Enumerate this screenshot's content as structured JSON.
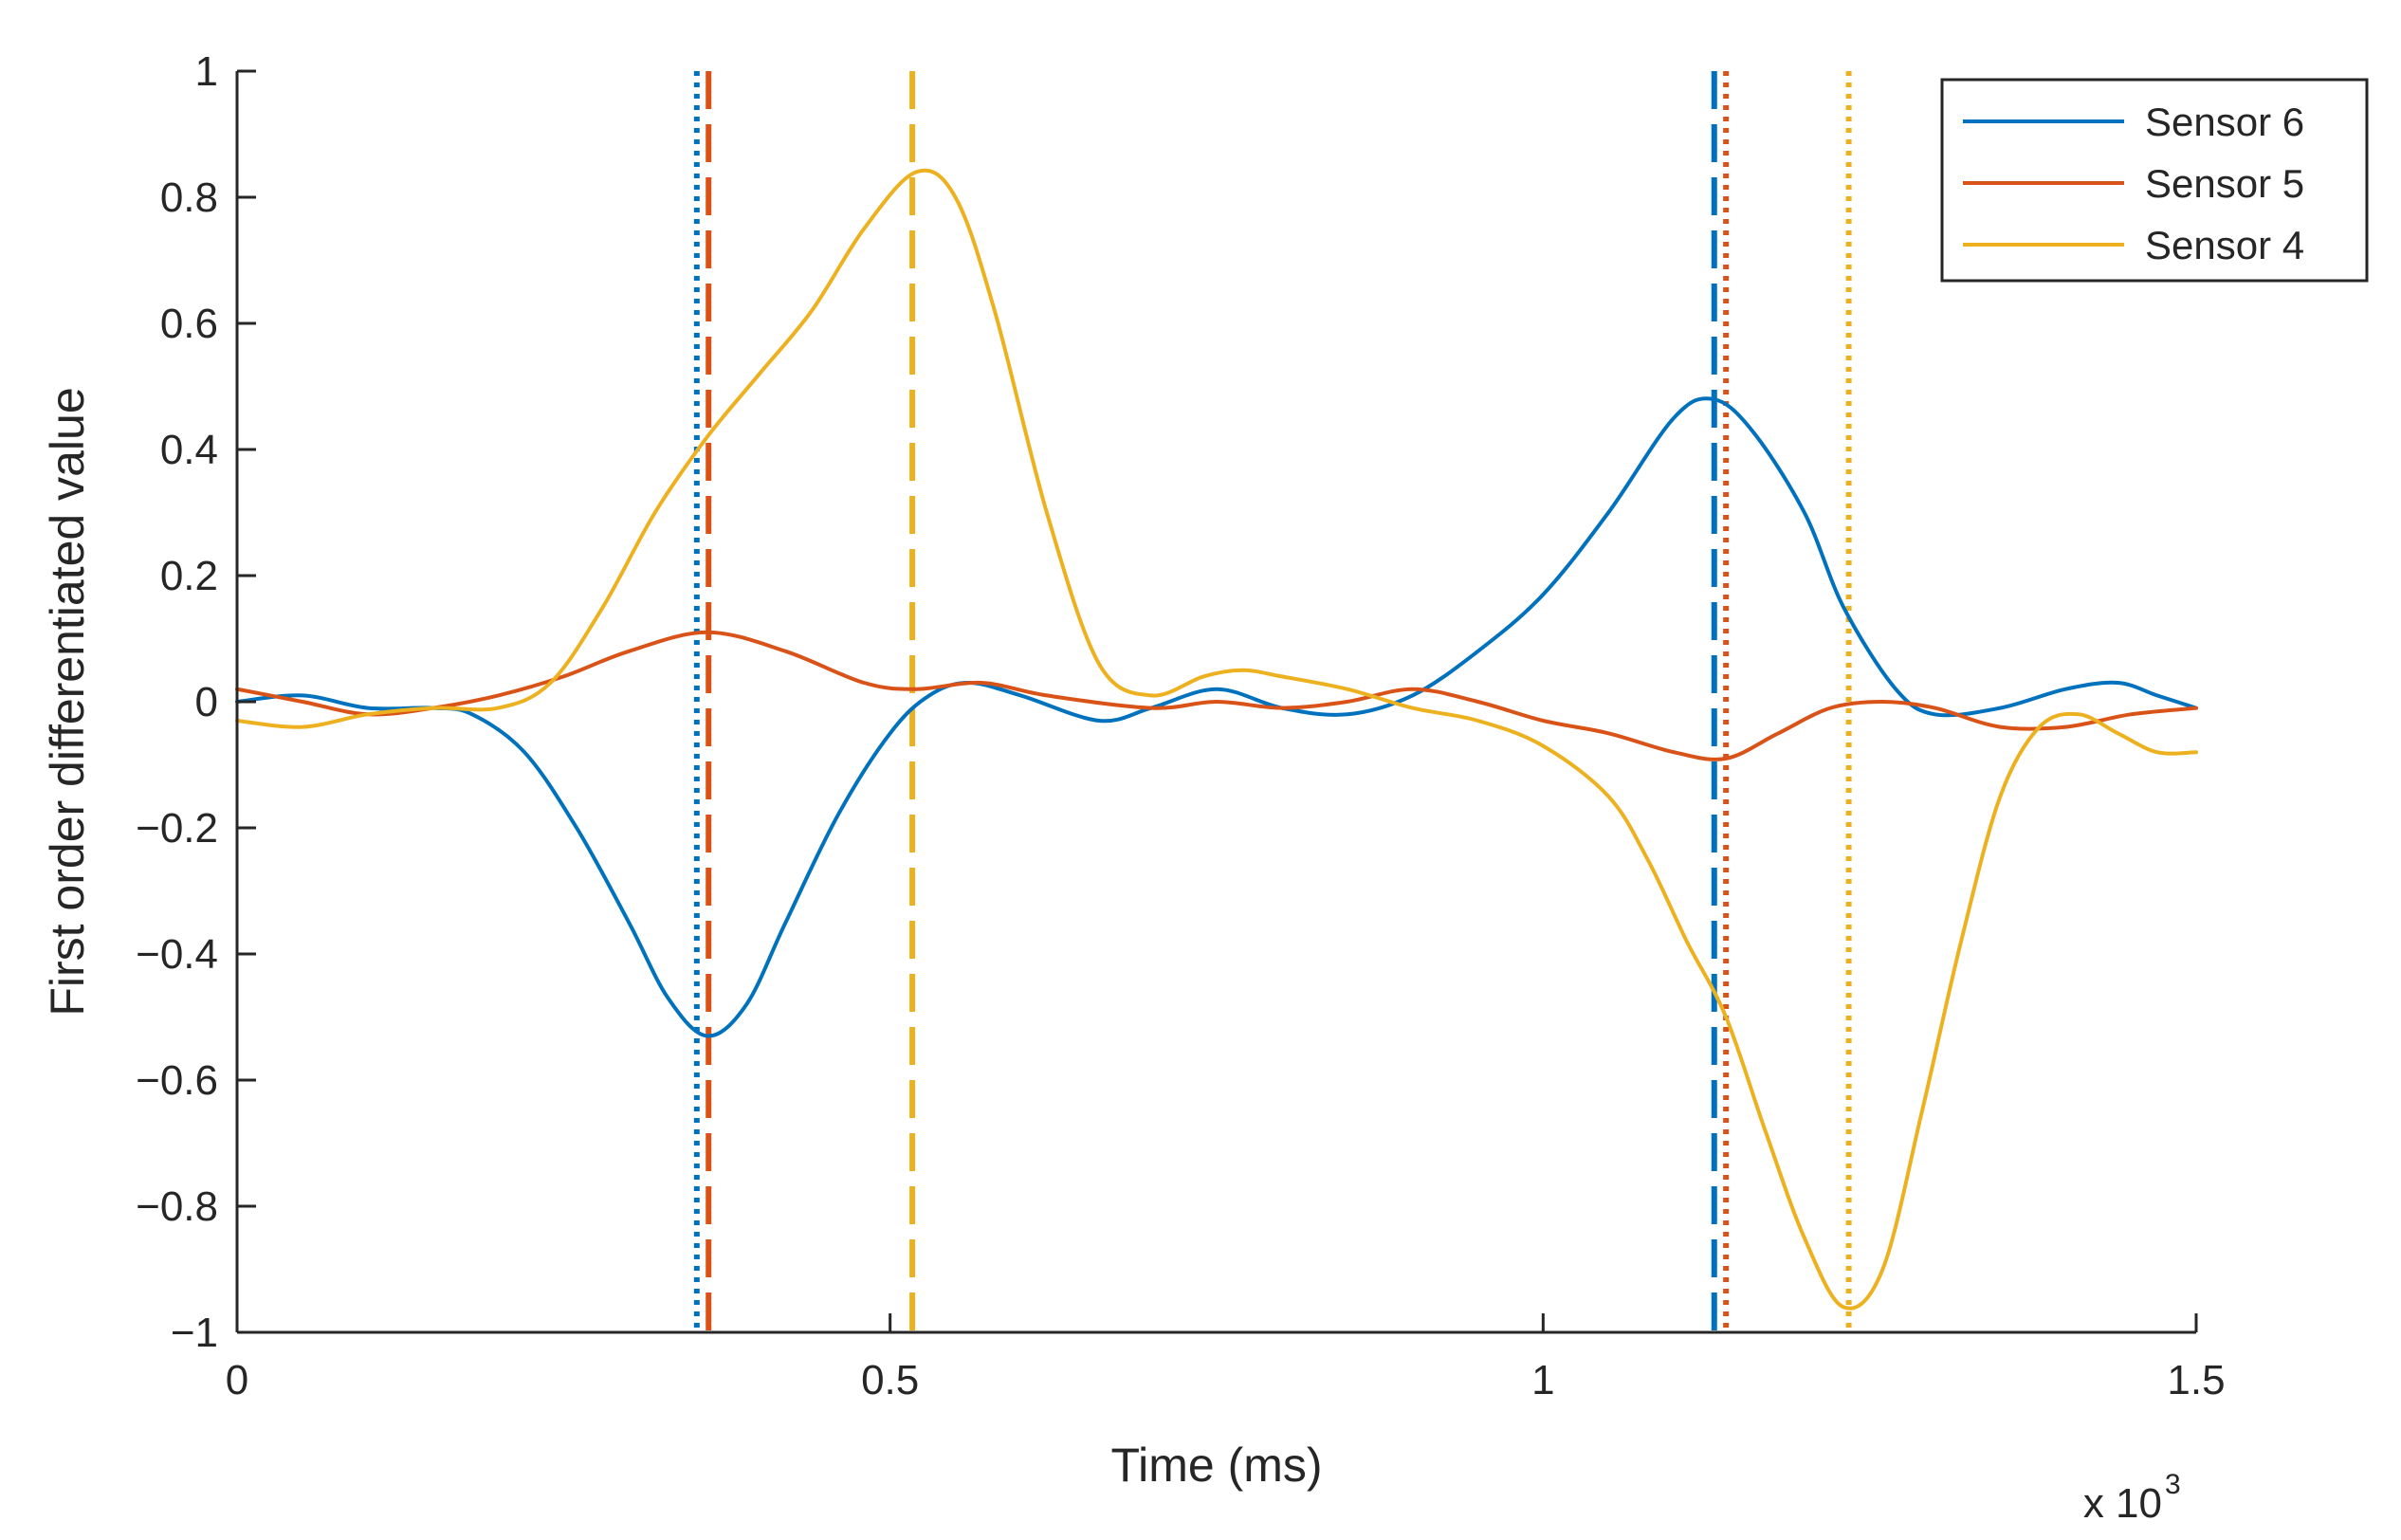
{
  "chart_data": {
    "type": "line",
    "title": "",
    "xlabel": "Time (ms)",
    "ylabel": "First order differentiated value",
    "x_exponent_label": "x 10",
    "x_exponent_power": "3",
    "xlim": [
      0,
      1.5
    ],
    "ylim": [
      -1,
      1
    ],
    "x_ticks": [
      0,
      0.5,
      1,
      1.5
    ],
    "x_tick_labels": [
      "0",
      "0.5",
      "1",
      "1.5"
    ],
    "y_ticks": [
      -1,
      -0.8,
      -0.6,
      -0.4,
      -0.2,
      0,
      0.2,
      0.4,
      0.6,
      0.8,
      1
    ],
    "y_tick_labels": [
      "−1",
      "−0.8",
      "−0.6",
      "−0.4",
      "−0.2",
      "0",
      "0.2",
      "0.4",
      "0.6",
      "0.8",
      "1"
    ],
    "grid": false,
    "legend_position": "top-right",
    "series": [
      {
        "name": "Sensor 6",
        "color": "#0072BD",
        "points": [
          [
            0,
            0
          ],
          [
            0.05,
            0.01
          ],
          [
            0.1,
            -0.01
          ],
          [
            0.15,
            -0.01
          ],
          [
            0.18,
            -0.02
          ],
          [
            0.22,
            -0.08
          ],
          [
            0.26,
            -0.2
          ],
          [
            0.3,
            -0.35
          ],
          [
            0.33,
            -0.47
          ],
          [
            0.36,
            -0.53
          ],
          [
            0.39,
            -0.48
          ],
          [
            0.42,
            -0.35
          ],
          [
            0.46,
            -0.18
          ],
          [
            0.5,
            -0.05
          ],
          [
            0.53,
            0.01
          ],
          [
            0.56,
            0.03
          ],
          [
            0.6,
            0.01
          ],
          [
            0.66,
            -0.03
          ],
          [
            0.7,
            -0.01
          ],
          [
            0.75,
            0.02
          ],
          [
            0.8,
            -0.01
          ],
          [
            0.85,
            -0.02
          ],
          [
            0.9,
            0.01
          ],
          [
            0.95,
            0.08
          ],
          [
            1.0,
            0.17
          ],
          [
            1.05,
            0.3
          ],
          [
            1.1,
            0.45
          ],
          [
            1.13,
            0.48
          ],
          [
            1.16,
            0.43
          ],
          [
            1.2,
            0.3
          ],
          [
            1.23,
            0.15
          ],
          [
            1.27,
            0.02
          ],
          [
            1.3,
            -0.02
          ],
          [
            1.35,
            -0.01
          ],
          [
            1.4,
            0.02
          ],
          [
            1.44,
            0.03
          ],
          [
            1.47,
            0.01
          ],
          [
            1.5,
            -0.01
          ]
        ]
      },
      {
        "name": "Sensor 5",
        "color": "#D95319",
        "points": [
          [
            0,
            0.02
          ],
          [
            0.05,
            0
          ],
          [
            0.1,
            -0.02
          ],
          [
            0.15,
            -0.01
          ],
          [
            0.2,
            0.01
          ],
          [
            0.25,
            0.04
          ],
          [
            0.3,
            0.08
          ],
          [
            0.36,
            0.11
          ],
          [
            0.42,
            0.08
          ],
          [
            0.48,
            0.03
          ],
          [
            0.52,
            0.02
          ],
          [
            0.57,
            0.03
          ],
          [
            0.62,
            0.01
          ],
          [
            0.7,
            -0.01
          ],
          [
            0.75,
            0
          ],
          [
            0.8,
            -0.01
          ],
          [
            0.85,
            0
          ],
          [
            0.9,
            0.02
          ],
          [
            0.95,
            0
          ],
          [
            1.0,
            -0.03
          ],
          [
            1.05,
            -0.05
          ],
          [
            1.1,
            -0.08
          ],
          [
            1.14,
            -0.09
          ],
          [
            1.18,
            -0.05
          ],
          [
            1.22,
            -0.01
          ],
          [
            1.26,
            0
          ],
          [
            1.3,
            -0.01
          ],
          [
            1.35,
            -0.04
          ],
          [
            1.4,
            -0.04
          ],
          [
            1.45,
            -0.02
          ],
          [
            1.5,
            -0.01
          ]
        ]
      },
      {
        "name": "Sensor 4",
        "color": "#EDB120",
        "points": [
          [
            0,
            -0.03
          ],
          [
            0.05,
            -0.04
          ],
          [
            0.1,
            -0.02
          ],
          [
            0.15,
            -0.01
          ],
          [
            0.2,
            -0.01
          ],
          [
            0.24,
            0.03
          ],
          [
            0.28,
            0.15
          ],
          [
            0.32,
            0.3
          ],
          [
            0.36,
            0.42
          ],
          [
            0.4,
            0.52
          ],
          [
            0.44,
            0.62
          ],
          [
            0.48,
            0.75
          ],
          [
            0.52,
            0.84
          ],
          [
            0.55,
            0.8
          ],
          [
            0.58,
            0.62
          ],
          [
            0.62,
            0.3
          ],
          [
            0.66,
            0.06
          ],
          [
            0.7,
            0.01
          ],
          [
            0.74,
            0.04
          ],
          [
            0.77,
            0.05
          ],
          [
            0.8,
            0.04
          ],
          [
            0.85,
            0.02
          ],
          [
            0.9,
            -0.01
          ],
          [
            0.95,
            -0.03
          ],
          [
            1.0,
            -0.07
          ],
          [
            1.05,
            -0.15
          ],
          [
            1.08,
            -0.25
          ],
          [
            1.11,
            -0.38
          ],
          [
            1.14,
            -0.5
          ],
          [
            1.17,
            -0.68
          ],
          [
            1.2,
            -0.85
          ],
          [
            1.23,
            -0.96
          ],
          [
            1.26,
            -0.9
          ],
          [
            1.29,
            -0.65
          ],
          [
            1.32,
            -0.38
          ],
          [
            1.35,
            -0.15
          ],
          [
            1.38,
            -0.04
          ],
          [
            1.41,
            -0.02
          ],
          [
            1.44,
            -0.05
          ],
          [
            1.47,
            -0.08
          ],
          [
            1.5,
            -0.08
          ]
        ]
      }
    ],
    "vertical_markers": [
      {
        "x": 0.352,
        "color": "#0072BD",
        "style": "dotted"
      },
      {
        "x": 0.361,
        "color": "#D95319",
        "style": "dashed"
      },
      {
        "x": 0.517,
        "color": "#EDB120",
        "style": "dashed"
      },
      {
        "x": 1.131,
        "color": "#0072BD",
        "style": "dashed"
      },
      {
        "x": 1.14,
        "color": "#D95319",
        "style": "dotted"
      },
      {
        "x": 1.234,
        "color": "#EDB120",
        "style": "dotted"
      }
    ]
  }
}
